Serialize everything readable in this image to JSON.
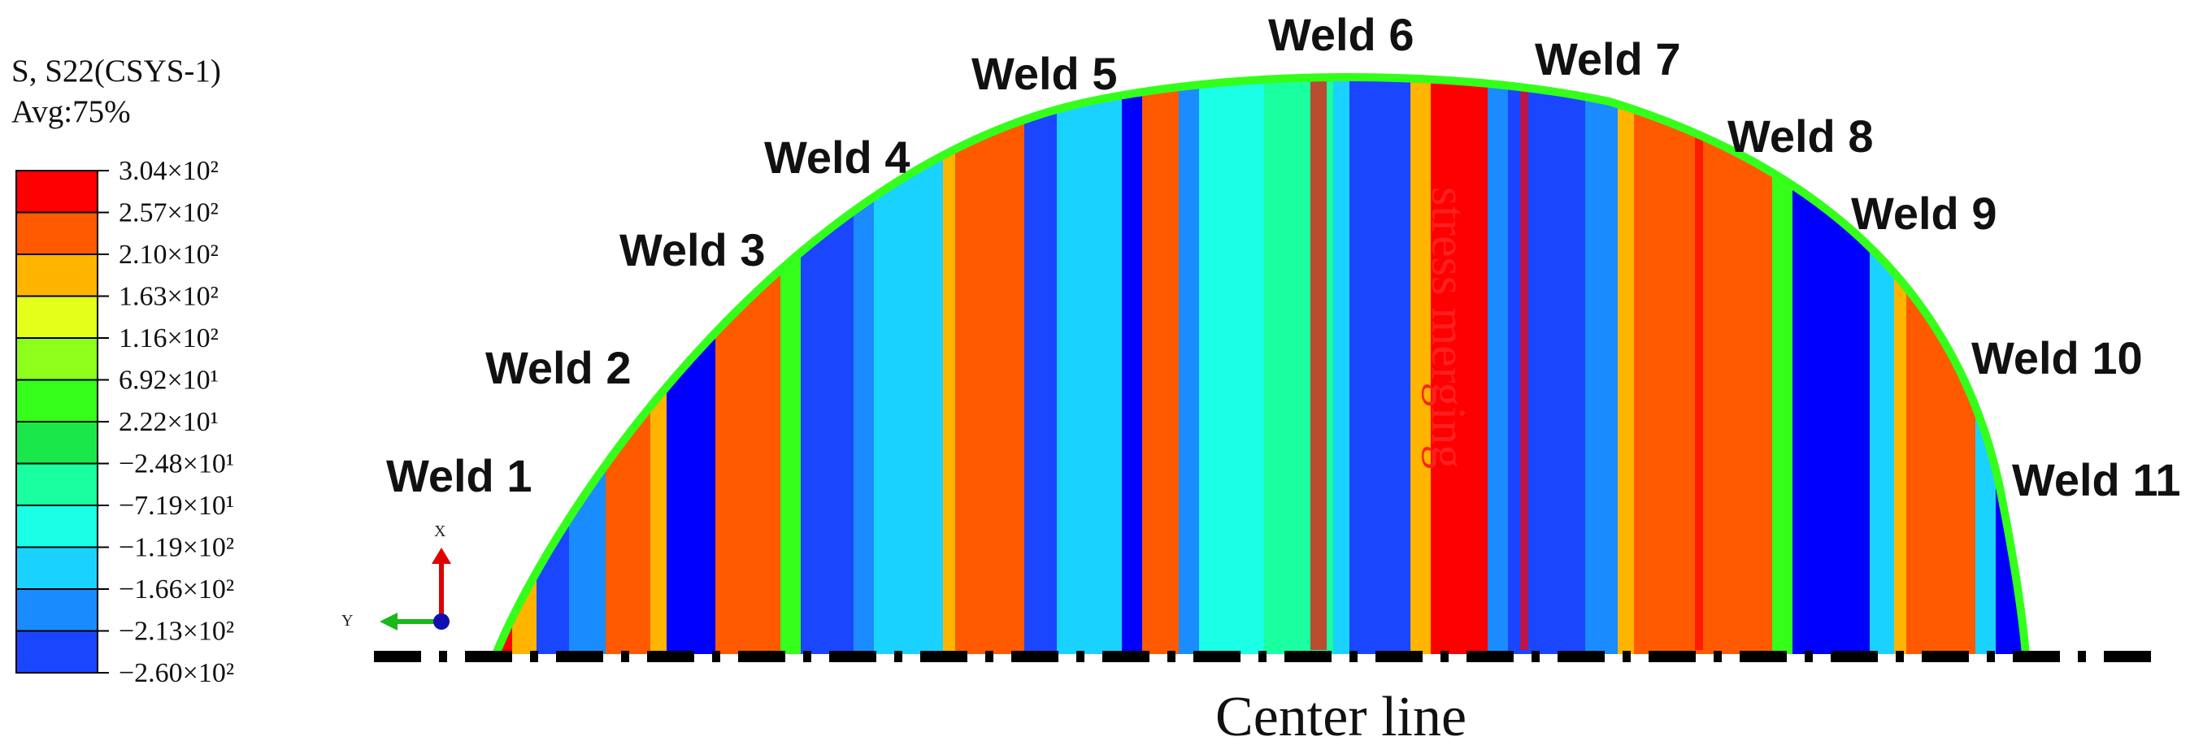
{
  "legend": {
    "title_line1": "S, S22(CSYS-1)",
    "title_line2": "Avg:75%",
    "levels": [
      {
        "label": "3.04×10²",
        "color": "#ff0000"
      },
      {
        "label": "2.57×10²",
        "color": "#ff5a00"
      },
      {
        "label": "2.10×10²",
        "color": "#ffb400"
      },
      {
        "label": "1.63×10²",
        "color": "#e4ff1a"
      },
      {
        "label": "1.16×10²",
        "color": "#8dff1a"
      },
      {
        "label": "6.92×10¹",
        "color": "#34ff1a"
      },
      {
        "label": "2.22×10¹",
        "color": "#1ae84a"
      },
      {
        "label": "−2.48×10¹",
        "color": "#1affa0"
      },
      {
        "label": "−7.19×10¹",
        "color": "#1affe6"
      },
      {
        "label": "−1.19×10²",
        "color": "#1ad2ff"
      },
      {
        "label": "−1.66×10²",
        "color": "#1a8cff"
      },
      {
        "label": "−2.13×10²",
        "color": "#1a46ff"
      },
      {
        "label": "−2.60×10²",
        "color": "#0000ff"
      }
    ]
  },
  "welds": [
    "Weld 1",
    "Weld 2",
    "Weld 3",
    "Weld 4",
    "Weld 5",
    "Weld 6",
    "Weld 7",
    "Weld 8",
    "Weld 9",
    "Weld 10",
    "Weld 11"
  ],
  "annotation": "stress merging",
  "center_line_label": "Center line",
  "triad": {
    "x_axis": "X",
    "y_axis": "Y"
  },
  "colors": {
    "weld_zone": "#ff5a00",
    "weld_core": "#ff0000",
    "rim": "#34ff1a",
    "base_blue": "#1a46ff",
    "annotation": "#ff2020"
  }
}
